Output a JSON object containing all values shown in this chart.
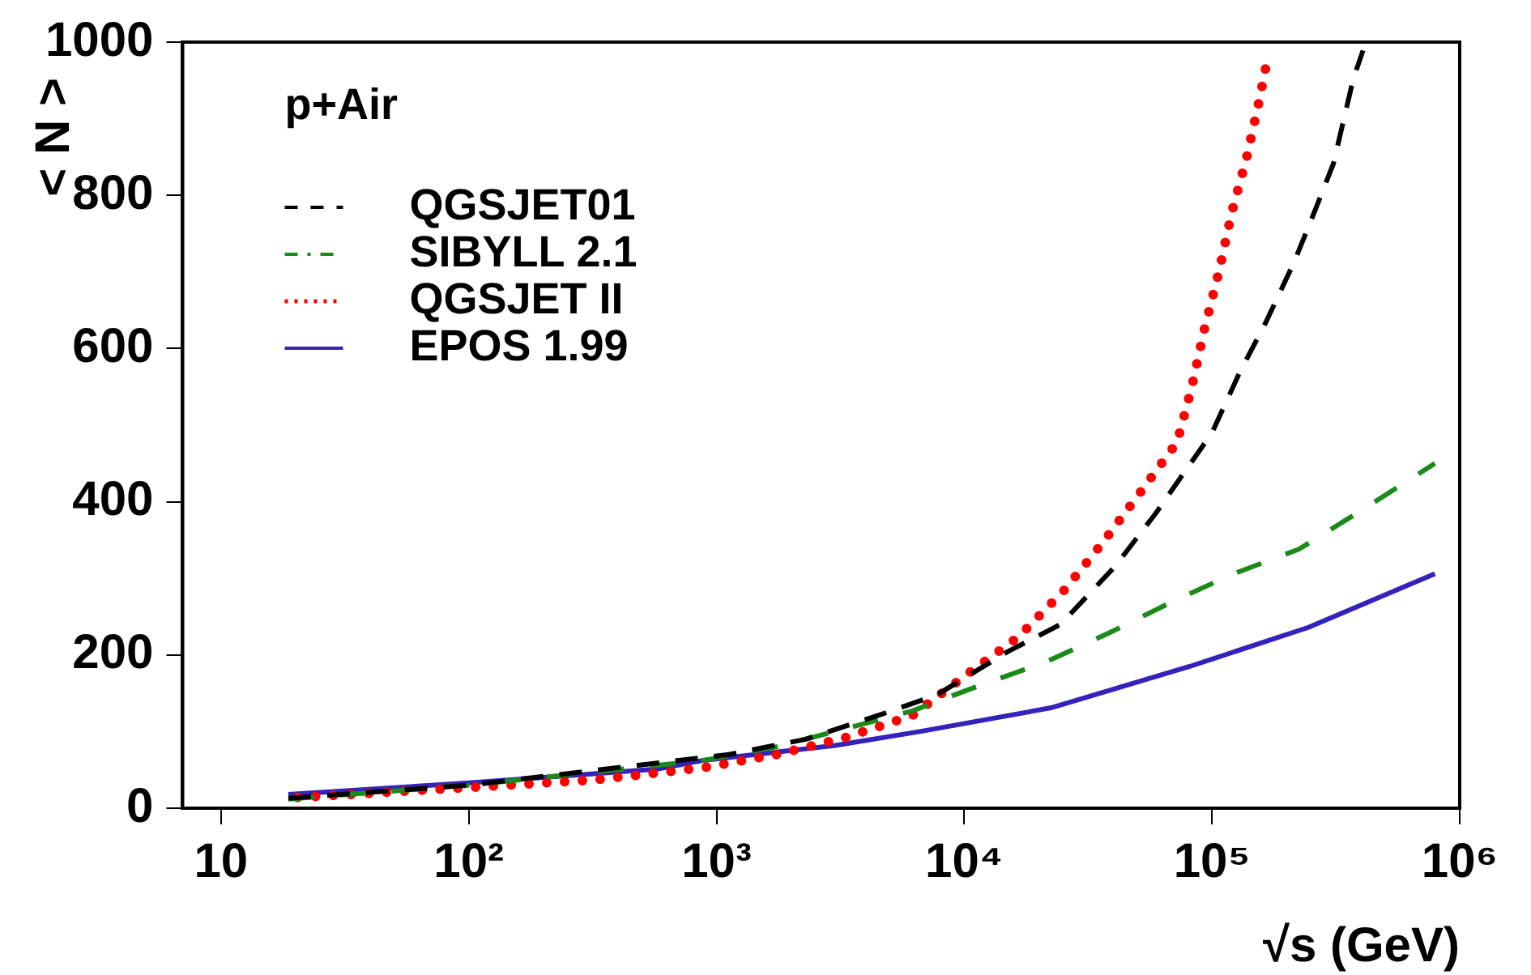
{
  "chart_data": {
    "type": "line",
    "xlabel": "√s (GeV)",
    "ylabel": "< N >",
    "legend_title": "p+Air",
    "legend": "top left",
    "log": "x",
    "grid": false,
    "xlim": [
      7,
      1000000
    ],
    "xticks": [
      10,
      {
        "value": 100,
        "label": "10²"
      },
      {
        "value": 1000,
        "label": "10³"
      },
      {
        "value": 10000,
        "label": "10⁴"
      },
      {
        "value": 100000,
        "label": "10⁵"
      },
      {
        "value": 1000000,
        "label": "10⁶"
      }
    ],
    "ylim": [
      0,
      1000
    ],
    "yticks": [
      0,
      200,
      400,
      600,
      800,
      1000
    ],
    "series": [
      {
        "name": "QGSJET01",
        "color": "#000000",
        "line_style": "dashed",
        "x": [
          18.7,
          100,
          1120,
          2290,
          4680,
          7760,
          15100,
          24500,
          40700,
          59000,
          100000,
          129000,
          166000,
          214000,
          251000,
          309000,
          372000,
          407000
        ],
        "values": [
          13,
          30,
          70,
          90,
          123,
          148,
          205,
          240,
          316,
          384,
          490,
          568,
          636,
          712,
          767,
          841,
          952,
          989
        ]
      },
      {
        "name": "SIBYLL 2.1",
        "color": "#1a8a1a",
        "line_style": "dashdot",
        "x": [
          18.7,
          100,
          870,
          1740,
          3240,
          6170,
          11500,
          21400,
          38000,
          67600,
          120000,
          224000,
          389000,
          794000
        ],
        "values": [
          12,
          30,
          62,
          80,
          103,
          127,
          160,
          191,
          228,
          268,
          305,
          338,
          386,
          450
        ]
      },
      {
        "name": "QGSJET II",
        "color": "#ff0000",
        "line_style": "dotted",
        "x": [
          20.4,
          100,
          324,
          891,
          1740,
          3310,
          6170,
          10000,
          16600,
          25100,
          36300,
          51300,
          72400,
          83200,
          93300,
          107000,
          120000,
          138000,
          155000,
          166000
        ],
        "values": [
          14,
          27,
          37,
          53,
          70,
          92,
          121,
          172,
          224,
          283,
          347,
          412,
          478,
          552,
          626,
          702,
          777,
          849,
          923,
          972
        ]
      },
      {
        "name": "EPOS 1.99",
        "color": "#3322bb",
        "line_style": "solid",
        "x": [
          18.7,
          100,
          575,
          870,
          3020,
          6610,
          22400,
          81300,
          245000,
          794000
        ],
        "values": [
          18,
          33,
          51,
          62,
          82,
          100,
          131,
          185,
          236,
          306
        ]
      }
    ]
  }
}
